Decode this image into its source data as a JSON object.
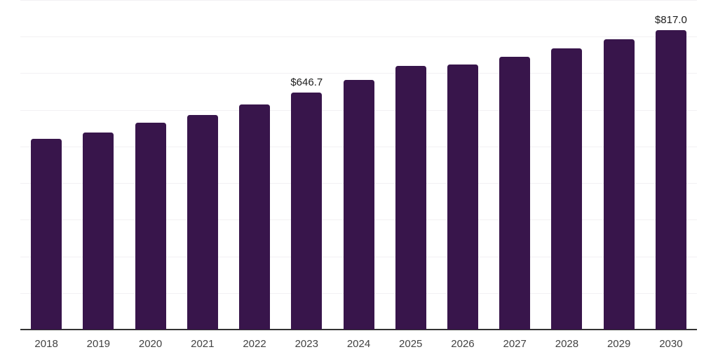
{
  "chart_data": {
    "type": "bar",
    "categories": [
      "2018",
      "2019",
      "2020",
      "2021",
      "2022",
      "2023",
      "2024",
      "2025",
      "2026",
      "2027",
      "2028",
      "2029",
      "2030"
    ],
    "values": [
      520,
      539,
      564,
      586,
      615,
      646.7,
      682,
      720,
      723,
      744,
      767,
      793,
      817
    ],
    "annotations": [
      {
        "category": "2023",
        "text": "$646.7"
      },
      {
        "category": "2030",
        "text": "$817.0"
      }
    ],
    "ylim": [
      0,
      900
    ],
    "gridline_step": 100,
    "layout_hints": {
      "grid": "horizontal",
      "legend": "none",
      "y_axis_tick_labels": false,
      "x_axis_line": true,
      "bar_corner": "rounded-top"
    },
    "colors": {
      "bar": "#38154b",
      "gridline": "#f2f0f3",
      "axis": "#333333",
      "value_label": "#1c1c1c",
      "tick_label": "#424242",
      "background": "#ffffff"
    }
  }
}
